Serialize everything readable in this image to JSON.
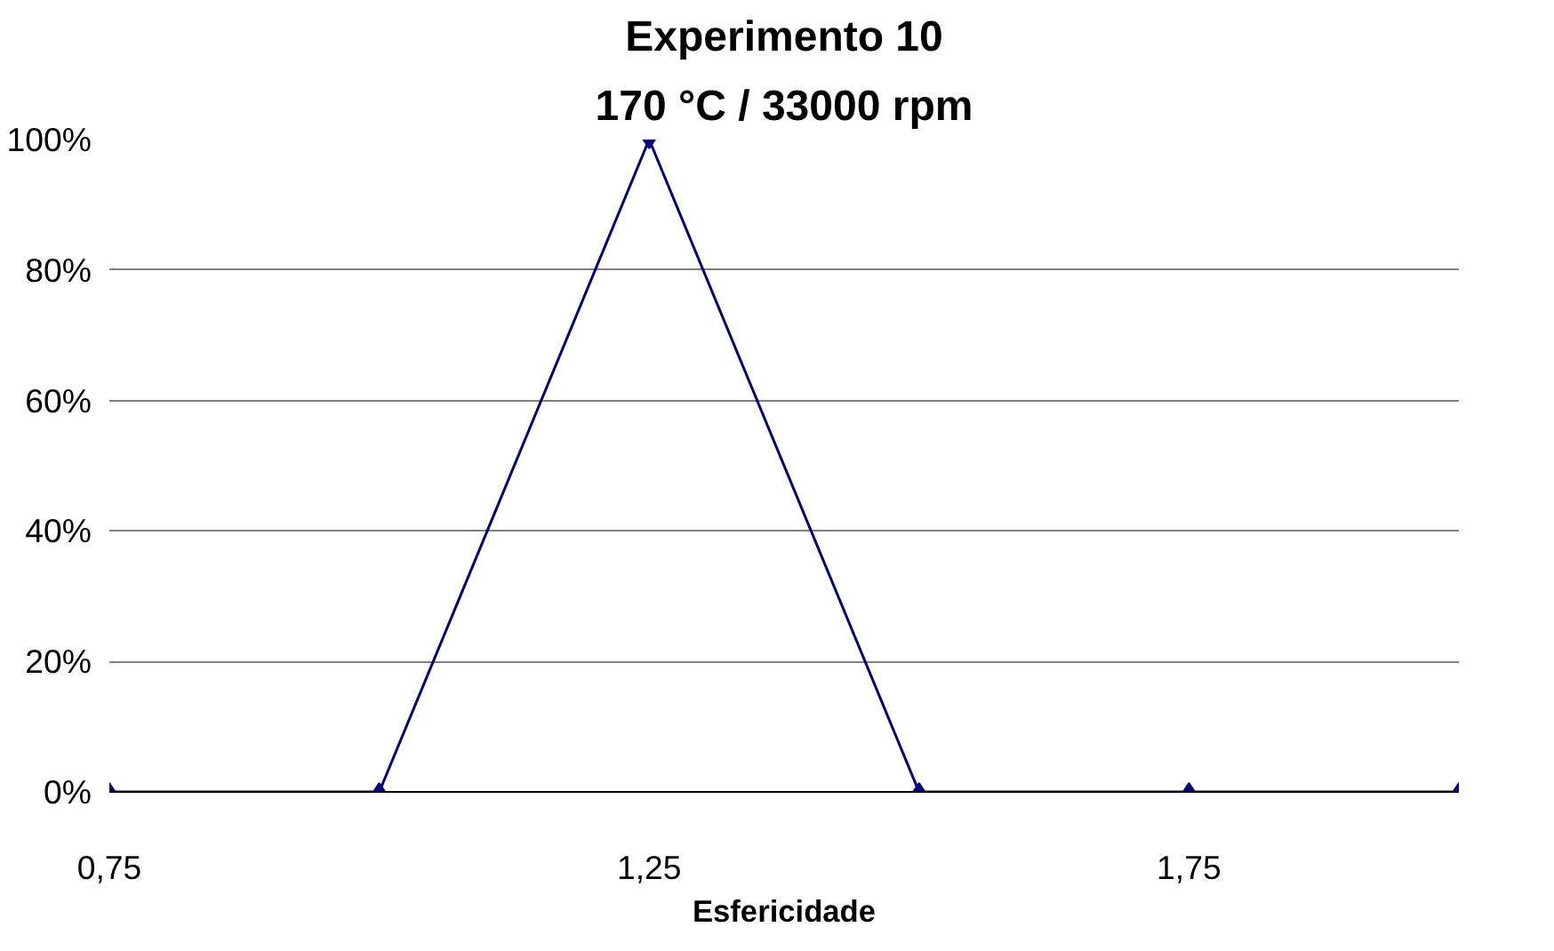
{
  "chart_data": {
    "type": "line",
    "title": "Experimento 10",
    "subtitle": "170 °C / 33000 rpm",
    "xlabel": "Esfericidade",
    "x": [
      0.75,
      1.0,
      1.25,
      1.5,
      1.75,
      2.0
    ],
    "series": [
      {
        "color": "#000080",
        "values": [
          0,
          0,
          100,
          0,
          0,
          0
        ]
      }
    ],
    "xlim": [
      0.75,
      2.0
    ],
    "xticks": [
      {
        "value": 0.75,
        "label": "0,75"
      },
      {
        "value": 1.25,
        "label": "1,25"
      },
      {
        "value": 1.75,
        "label": "1,75"
      }
    ],
    "ylim": [
      0,
      100
    ],
    "yticks": [
      {
        "value": 0,
        "label": "0%"
      },
      {
        "value": 20,
        "label": "20%"
      },
      {
        "value": 40,
        "label": "40%"
      },
      {
        "value": 60,
        "label": "60%"
      },
      {
        "value": 80,
        "label": "80%"
      },
      {
        "value": 100,
        "label": "100%"
      }
    ],
    "grid": "y",
    "marker": "diamond",
    "line_style": "solid"
  }
}
